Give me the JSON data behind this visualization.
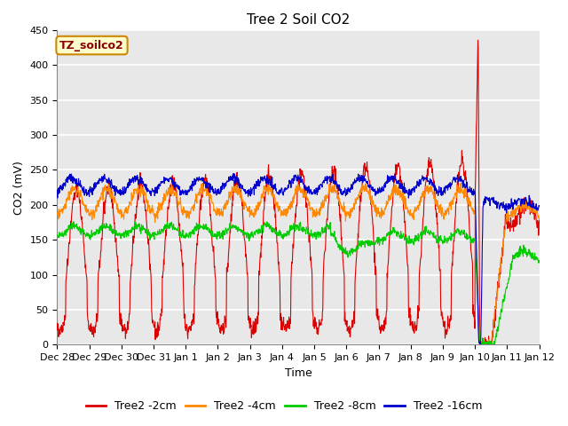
{
  "title": "Tree 2 Soil CO2",
  "xlabel": "Time",
  "ylabel": "CO2 (mV)",
  "ylim": [
    0,
    450
  ],
  "yticks": [
    0,
    50,
    100,
    150,
    200,
    250,
    300,
    350,
    400,
    450
  ],
  "background_color": "#ffffff",
  "plot_bg_color": "#e8e8e8",
  "grid_color": "#ffffff",
  "legend_box_label": "TZ_soilco2",
  "legend_box_bg": "#ffffcc",
  "legend_box_edge": "#cc8800",
  "legend_box_text_color": "#8b0000",
  "series": [
    {
      "label": "Tree2 -2cm",
      "color": "#dd0000"
    },
    {
      "label": "Tree2 -4cm",
      "color": "#ff8800"
    },
    {
      "label": "Tree2 -8cm",
      "color": "#00cc00"
    },
    {
      "label": "Tree2 -16cm",
      "color": "#0000cc"
    }
  ],
  "xtick_labels": [
    "Dec 28",
    "Dec 29",
    "Dec 30",
    "Dec 31",
    "Jan 1",
    "Jan 2",
    "Jan 3",
    "Jan 4",
    "Jan 5",
    "Jan 6",
    "Jan 7",
    "Jan 8",
    "Jan 9",
    "Jan 10",
    "Jan 11",
    "Jan 12"
  ],
  "title_fontsize": 11,
  "axis_label_fontsize": 9,
  "tick_fontsize": 8,
  "legend_fontsize": 9
}
